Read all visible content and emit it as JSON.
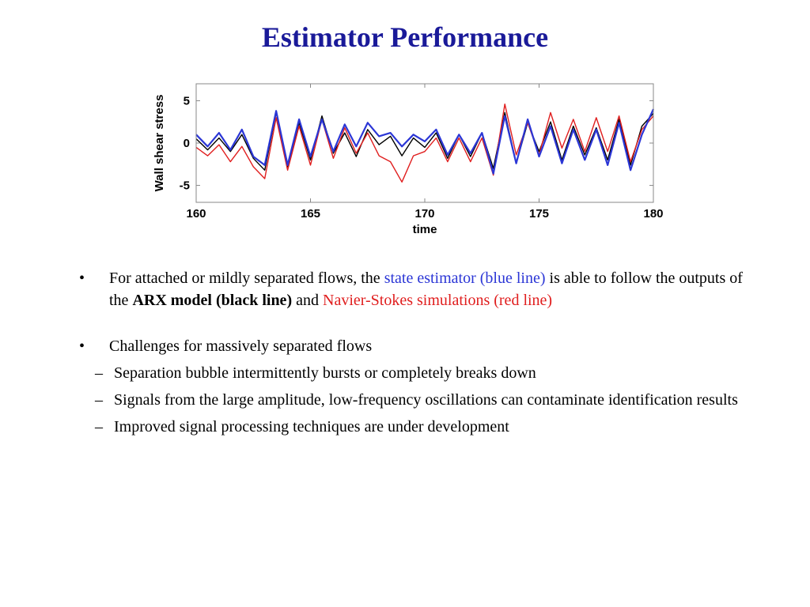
{
  "slide": {
    "title": "Estimator Performance"
  },
  "colors": {
    "title": "#1a1a99",
    "estimator": "#2b36d6",
    "arx": "#000000",
    "navier_stokes": "#e01e1e"
  },
  "chart_data": {
    "type": "line",
    "xlabel": "time",
    "ylabel": "Wall shear stress",
    "xlim": [
      160,
      180
    ],
    "ylim": [
      -7,
      7
    ],
    "xticks": [
      "160",
      "165",
      "170",
      "175",
      "180"
    ],
    "yticks": [
      "5",
      "0",
      "-5"
    ],
    "grid": false,
    "legend": "none",
    "series": [
      {
        "color": "#000000",
        "x": [
          160,
          160.5,
          161,
          161.5,
          162,
          162.5,
          163,
          163.5,
          164,
          164.5,
          165,
          165.5,
          166,
          166.5,
          167,
          167.5,
          168,
          168.5,
          169,
          169.5,
          170,
          170.5,
          171,
          171.5,
          172,
          172.5,
          173,
          173.5,
          174,
          174.5,
          175,
          175.5,
          176,
          176.5,
          177,
          177.5,
          178,
          178.5,
          179,
          179.5,
          180
        ],
        "y": [
          0.5,
          -0.8,
          0.6,
          -1.0,
          1.0,
          -1.8,
          -3.2,
          3.6,
          -2.8,
          2.4,
          -2.0,
          3.2,
          -1.2,
          1.2,
          -1.6,
          1.6,
          -0.2,
          0.8,
          -1.5,
          0.6,
          -0.5,
          1.2,
          -1.8,
          1.0,
          -1.6,
          1.2,
          -3.0,
          3.6,
          -2.4,
          2.4,
          -1.0,
          2.5,
          -2.0,
          2.0,
          -1.4,
          1.8,
          -2.0,
          2.8,
          -2.6,
          2.0,
          3.5
        ]
      },
      {
        "color": "#e01e1e",
        "x": [
          160,
          160.5,
          161,
          161.5,
          162,
          162.5,
          163,
          163.5,
          164,
          164.5,
          165,
          165.5,
          166,
          166.5,
          167,
          167.5,
          168,
          168.5,
          169,
          169.5,
          170,
          170.5,
          171,
          171.5,
          172,
          172.5,
          173,
          173.5,
          174,
          174.5,
          175,
          175.5,
          176,
          176.5,
          177,
          177.5,
          178,
          178.5,
          179,
          179.5,
          180
        ],
        "y": [
          -0.5,
          -1.5,
          -0.2,
          -2.2,
          -0.4,
          -2.8,
          -4.2,
          3.0,
          -3.2,
          2.0,
          -2.6,
          2.8,
          -1.8,
          1.8,
          -1.2,
          1.2,
          -1.5,
          -2.2,
          -4.6,
          -1.5,
          -1.0,
          0.6,
          -2.2,
          0.6,
          -2.2,
          0.6,
          -3.8,
          4.6,
          -1.4,
          2.4,
          -1.4,
          3.6,
          -0.6,
          2.8,
          -1.0,
          3.0,
          -1.0,
          3.2,
          -2.2,
          1.6,
          3.2
        ]
      },
      {
        "color": "#2b36d6",
        "x": [
          160,
          160.5,
          161,
          161.5,
          162,
          162.5,
          163,
          163.5,
          164,
          164.5,
          165,
          165.5,
          166,
          166.5,
          167,
          167.5,
          168,
          168.5,
          169,
          169.5,
          170,
          170.5,
          171,
          171.5,
          172,
          172.5,
          173,
          173.5,
          174,
          174.5,
          175,
          175.5,
          176,
          176.5,
          177,
          177.5,
          178,
          178.5,
          179,
          179.5,
          180
        ],
        "y": [
          1.0,
          -0.4,
          1.2,
          -0.8,
          1.6,
          -1.6,
          -2.6,
          3.8,
          -2.6,
          2.8,
          -1.6,
          2.8,
          -1.0,
          2.2,
          -0.4,
          2.4,
          0.8,
          1.2,
          -0.4,
          1.0,
          0.2,
          1.6,
          -1.4,
          1.0,
          -1.2,
          1.2,
          -3.6,
          3.2,
          -2.4,
          2.8,
          -1.6,
          2.0,
          -2.4,
          1.6,
          -2.0,
          1.6,
          -2.6,
          2.4,
          -3.2,
          1.0,
          4.0
        ]
      }
    ]
  },
  "bullets": [
    {
      "marker": "•",
      "text_a": "For attached or mildly separated flows, the ",
      "text_b": "state estimator (blue line)",
      "text_c": " is able to follow the outputs of the ",
      "text_d": "ARX model (black line)",
      "text_e": " and  ",
      "text_f": "Navier-Stokes simulations (red line)"
    },
    {
      "marker": "•",
      "text": "Challenges for massively separated flows",
      "sub_items": [
        {
          "marker": "–",
          "text": "Separation bubble intermittently bursts or completely breaks down"
        },
        {
          "marker": "–",
          "text": "Signals from the large amplitude, low-frequency oscillations can contaminate identification results"
        },
        {
          "marker": "–",
          "text": "Improved signal processing techniques are under development"
        }
      ]
    }
  ]
}
